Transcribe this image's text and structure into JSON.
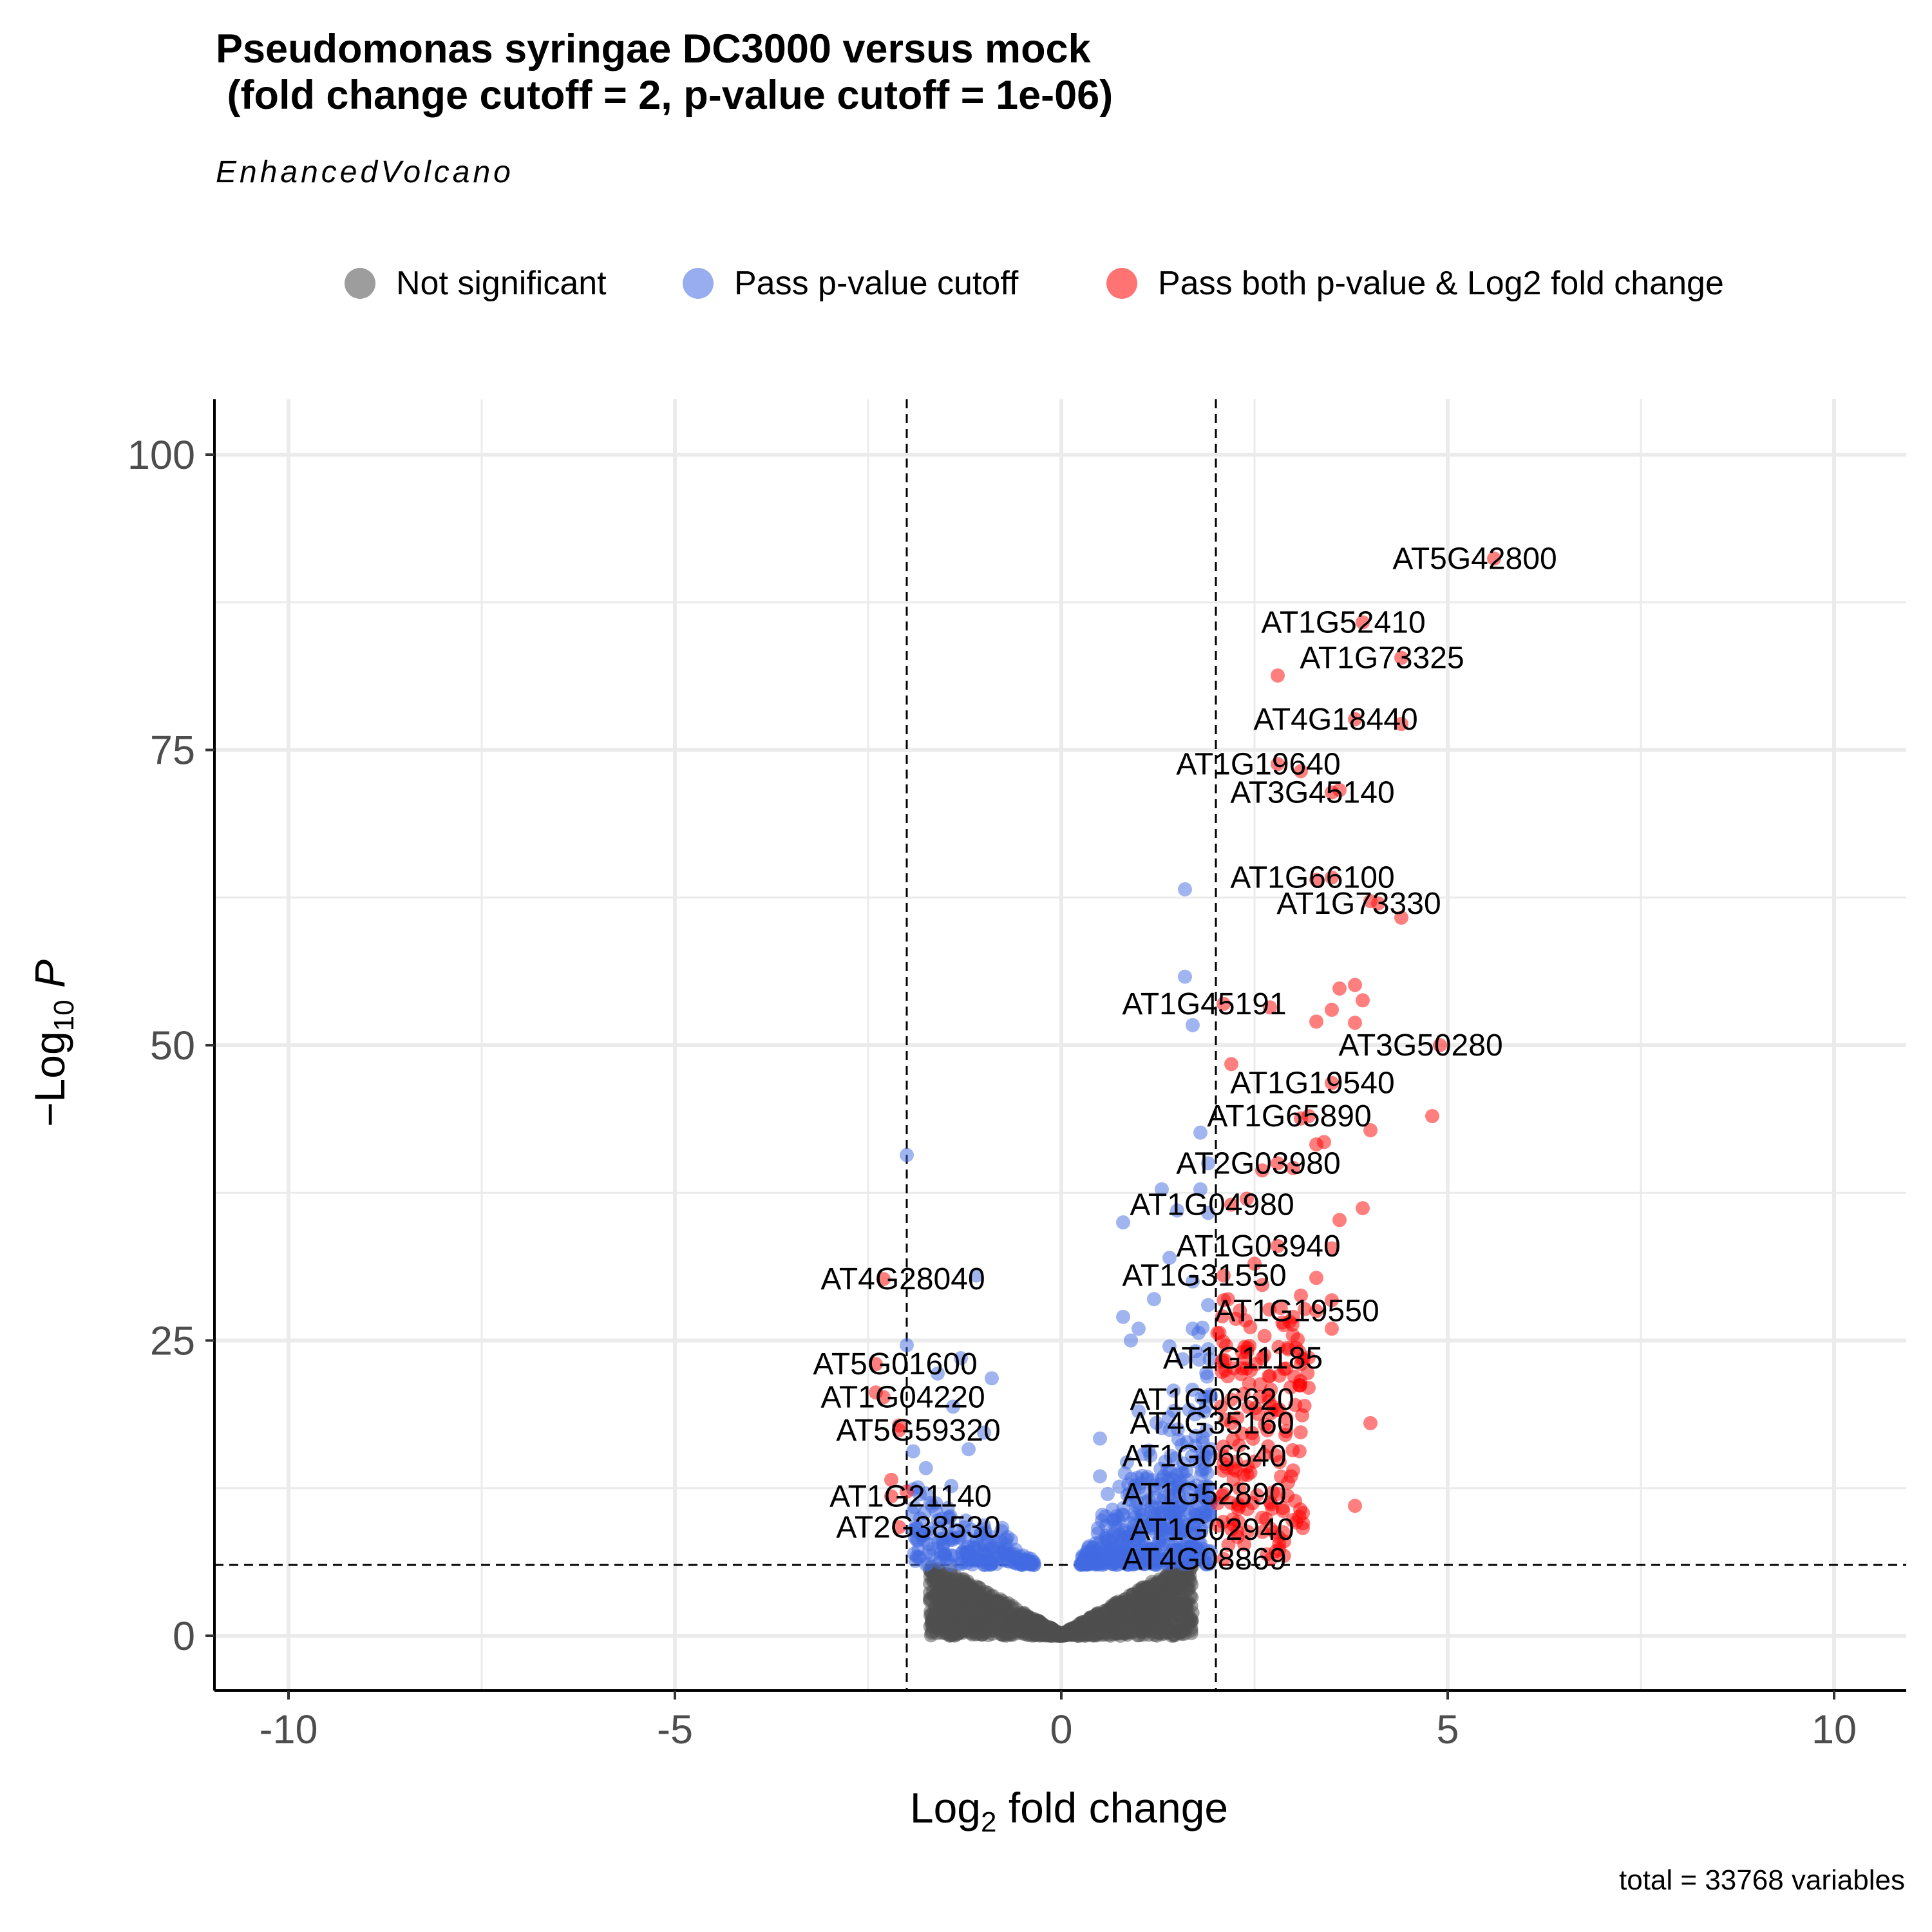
{
  "title_line1": "Pseudomonas syringae DC3000 versus mock",
  "title_line2": " (fold change cutoff = 2, p-value cutoff = 1e-06)",
  "subtitle": "EnhancedVolcano",
  "caption": "total = 33768 variables",
  "legend": [
    {
      "label": "Not significant",
      "color": "#4d4d4d"
    },
    {
      "label": "Pass p-value cutoff",
      "color": "#4169e1"
    },
    {
      "label": "Pass both p-value & Log2 fold change",
      "color": "#ff0000"
    }
  ],
  "chart_data": {
    "type": "scatter",
    "xlabel": "Log2 fold change",
    "ylabel": "−Log10 P",
    "xlim": [
      -11,
      11
    ],
    "ylim": [
      -5,
      105
    ],
    "x_ticks": [
      -10,
      -5,
      0,
      5,
      10
    ],
    "x_tick_labels": [
      "-10",
      "-5",
      "0",
      "5",
      "10"
    ],
    "y_ticks": [
      0,
      25,
      50,
      75,
      100
    ],
    "y_tick_labels": [
      "0",
      "25",
      "50",
      "75",
      "100"
    ],
    "grid": true,
    "cutoffs": {
      "log2fc": [
        -2,
        2
      ],
      "neg_log10_p": 6
    },
    "legend_position": "top",
    "labeled_points": [
      {
        "label": "AT5G42800",
        "x": 5.6,
        "y": 91.2
      },
      {
        "label": "AT1G52410",
        "x": 3.9,
        "y": 85.8
      },
      {
        "label": "AT1G73325",
        "x": 4.4,
        "y": 82.8
      },
      {
        "label": "AT4G18440",
        "x": 3.8,
        "y": 77.6
      },
      {
        "label": "AT1G19640",
        "x": 2.8,
        "y": 73.8
      },
      {
        "label": "AT3G45140",
        "x": 3.5,
        "y": 71.4
      },
      {
        "label": "AT1G66100",
        "x": 3.5,
        "y": 64.2
      },
      {
        "label": "AT1G73330",
        "x": 4.1,
        "y": 62.0
      },
      {
        "label": "AT1G45191",
        "x": 2.1,
        "y": 53.5
      },
      {
        "label": "AT3G50280",
        "x": 4.9,
        "y": 50.0
      },
      {
        "label": "AT1G19540",
        "x": 3.5,
        "y": 46.8
      },
      {
        "label": "AT1G65890",
        "x": 3.2,
        "y": 44.0
      },
      {
        "label": "AT2G03980",
        "x": 2.8,
        "y": 40.0
      },
      {
        "label": "AT1G04980",
        "x": 2.2,
        "y": 36.5
      },
      {
        "label": "AT1G03940",
        "x": 2.8,
        "y": 33.0
      },
      {
        "label": "AT1G31550",
        "x": 2.1,
        "y": 30.5
      },
      {
        "label": "AT1G19550",
        "x": 3.3,
        "y": 27.5
      },
      {
        "label": "AT1G11185",
        "x": 2.6,
        "y": 23.5
      },
      {
        "label": "AT1G06620",
        "x": 2.2,
        "y": 20.0
      },
      {
        "label": "AT4G35160",
        "x": 2.2,
        "y": 18.0
      },
      {
        "label": "AT1G06640",
        "x": 2.1,
        "y": 15.2
      },
      {
        "label": "AT1G52890",
        "x": 2.1,
        "y": 12.0
      },
      {
        "label": "AT1G02940",
        "x": 2.2,
        "y": 9.0
      },
      {
        "label": "AT4G08869",
        "x": 2.1,
        "y": 6.5
      },
      {
        "label": "AT4G28040",
        "x": -2.3,
        "y": 30.2
      },
      {
        "label": "AT5G01600",
        "x": -2.4,
        "y": 23.0
      },
      {
        "label": "AT1G04220",
        "x": -2.3,
        "y": 20.2
      },
      {
        "label": "AT5G59320",
        "x": -2.1,
        "y": 17.4
      },
      {
        "label": "AT1G21140",
        "x": -2.2,
        "y": 11.8
      },
      {
        "label": "AT2G38530",
        "x": -2.1,
        "y": 9.2
      }
    ],
    "extra_significant_points": [
      [
        2.8,
        81.3
      ],
      [
        4.4,
        77.2
      ],
      [
        3.1,
        73.2
      ],
      [
        3.6,
        71.6
      ],
      [
        3.3,
        64.0
      ],
      [
        4.0,
        62.2
      ],
      [
        4.4,
        60.8
      ],
      [
        3.6,
        54.8
      ],
      [
        3.8,
        55.1
      ],
      [
        3.9,
        53.8
      ],
      [
        2.7,
        53.2
      ],
      [
        3.5,
        53.0
      ],
      [
        3.3,
        52.0
      ],
      [
        3.8,
        51.9
      ],
      [
        2.2,
        48.4
      ],
      [
        4.8,
        44.0
      ],
      [
        3.1,
        43.8
      ],
      [
        4.0,
        42.8
      ],
      [
        3.4,
        41.8
      ],
      [
        3.3,
        41.6
      ],
      [
        3.0,
        39.6
      ],
      [
        2.6,
        39.4
      ],
      [
        3.9,
        36.2
      ],
      [
        2.4,
        37.0
      ],
      [
        3.6,
        35.2
      ],
      [
        3.5,
        32.8
      ],
      [
        3.3,
        30.3
      ],
      [
        3.5,
        28.4
      ],
      [
        3.1,
        28.8
      ],
      [
        2.5,
        31.5
      ],
      [
        2.6,
        29.7
      ],
      [
        3.0,
        27.0
      ],
      [
        4.0,
        18.0
      ],
      [
        3.8,
        11.0
      ],
      [
        3.1,
        23.0
      ],
      [
        2.7,
        22.0
      ],
      [
        3.5,
        26.0
      ],
      [
        3.2,
        21.0
      ],
      [
        2.9,
        17.0
      ],
      [
        3.0,
        14.0
      ],
      [
        2.8,
        12.0
      ],
      [
        2.6,
        10.0
      ],
      [
        -2.4,
        20.6
      ],
      [
        -2.2,
        13.2
      ],
      [
        -2.0,
        12.2
      ],
      [
        -2.1,
        17.8
      ]
    ],
    "extra_pvalue_points": [
      [
        1.6,
        63.2
      ],
      [
        1.6,
        55.8
      ],
      [
        1.7,
        51.7
      ],
      [
        1.8,
        42.6
      ],
      [
        1.9,
        40.0
      ],
      [
        1.8,
        37.8
      ],
      [
        1.9,
        35.8
      ],
      [
        1.3,
        37.8
      ],
      [
        1.5,
        36.0
      ],
      [
        0.8,
        35.0
      ],
      [
        1.4,
        32.0
      ],
      [
        1.7,
        30.0
      ],
      [
        1.2,
        28.5
      ],
      [
        1.0,
        26.0
      ],
      [
        0.9,
        25.0
      ],
      [
        0.8,
        27.0
      ],
      [
        1.9,
        28.0
      ],
      [
        -2.0,
        40.7
      ],
      [
        -1.1,
        30.5
      ],
      [
        -1.3,
        23.5
      ],
      [
        -0.9,
        21.8
      ],
      [
        -2.0,
        24.6
      ],
      [
        -1.6,
        22.2
      ],
      [
        -1.4,
        19.4
      ],
      [
        -1.0,
        17.2
      ],
      [
        -1.2,
        15.8
      ],
      [
        1.0,
        19.0
      ],
      [
        0.5,
        16.7
      ],
      [
        0.5,
        13.5
      ],
      [
        0.6,
        12.0
      ],
      [
        1.7,
        26.0
      ],
      [
        1.4,
        24.5
      ]
    ]
  }
}
